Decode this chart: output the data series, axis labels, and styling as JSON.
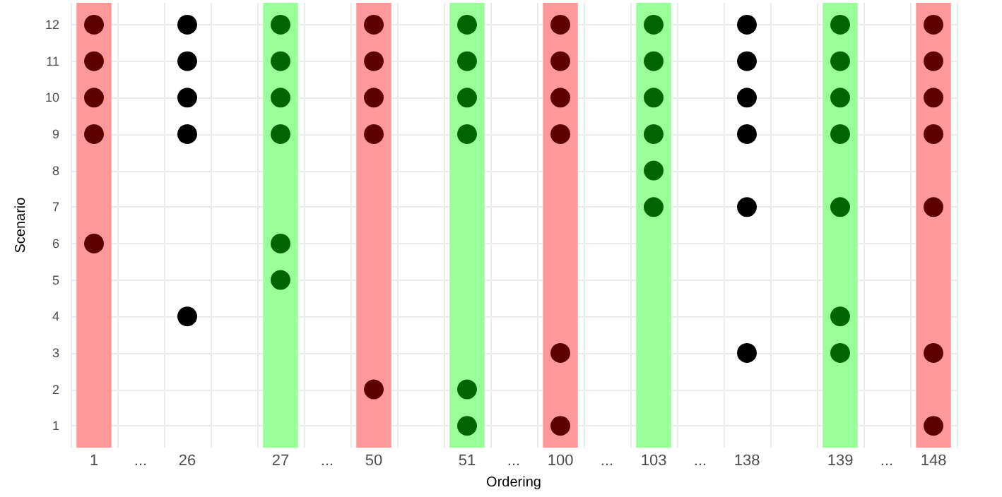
{
  "chart_data": {
    "type": "scatter",
    "xlabel": "Ordering",
    "ylabel": "Scenario",
    "categories": [
      "1",
      "...",
      "26",
      null,
      "27",
      "...",
      "50",
      null,
      "51",
      "...",
      "100",
      "...",
      "103",
      "...",
      "138",
      null,
      "139",
      "...",
      "148"
    ],
    "series": [
      {
        "color": "#5c0000",
        "x": [
          "1",
          "1",
          "1",
          "1",
          "1",
          "50",
          "50",
          "50",
          "50",
          "50",
          "100",
          "100",
          "100",
          "100",
          "100",
          "100",
          "148",
          "148",
          "148",
          "148",
          "148",
          "148",
          "148"
        ],
        "values": [
          12,
          11,
          10,
          9,
          6,
          12,
          11,
          10,
          9,
          2,
          12,
          11,
          10,
          9,
          3,
          1,
          12,
          11,
          10,
          9,
          7,
          3,
          1
        ]
      },
      {
        "color": "#000000",
        "x": [
          "26",
          "26",
          "26",
          "26",
          "26",
          "138",
          "138",
          "138",
          "138",
          "138",
          "138"
        ],
        "values": [
          12,
          11,
          10,
          9,
          4,
          12,
          11,
          10,
          9,
          7,
          3
        ]
      },
      {
        "color": "#006400",
        "x": [
          "27",
          "27",
          "27",
          "27",
          "27",
          "27",
          "51",
          "51",
          "51",
          "51",
          "51",
          "51",
          "103",
          "103",
          "103",
          "103",
          "103",
          "103",
          "139",
          "139",
          "139",
          "139",
          "139",
          "139",
          "139"
        ],
        "values": [
          12,
          11,
          10,
          9,
          6,
          5,
          12,
          11,
          10,
          9,
          2,
          1,
          12,
          11,
          10,
          9,
          8,
          7,
          12,
          11,
          10,
          9,
          7,
          4,
          3
        ]
      }
    ],
    "bands": [
      {
        "axis": "x",
        "from": "1",
        "to": "1",
        "color": "#ff9999"
      },
      {
        "axis": "x",
        "from": "27",
        "to": "27",
        "color": "#99ff99"
      },
      {
        "axis": "x",
        "from": "50",
        "to": "50",
        "color": "#ff9999"
      },
      {
        "axis": "x",
        "from": "51",
        "to": "51",
        "color": "#99ff99"
      },
      {
        "axis": "x",
        "from": "100",
        "to": "100",
        "color": "#ff9999"
      },
      {
        "axis": "x",
        "from": "103",
        "to": "103",
        "color": "#99ff99"
      },
      {
        "axis": "x",
        "from": "139",
        "to": "139",
        "color": "#99ff99"
      },
      {
        "axis": "x",
        "from": "148",
        "to": "148",
        "color": "#ff9999"
      }
    ],
    "ylim": [
      0.4,
      12.6
    ],
    "yticks": [
      1,
      2,
      3,
      4,
      5,
      6,
      7,
      8,
      9,
      10,
      11,
      12
    ],
    "grid": true,
    "marker": "circle"
  }
}
